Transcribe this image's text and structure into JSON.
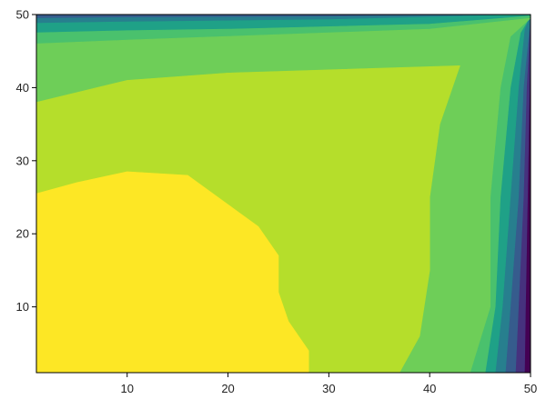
{
  "chart_data": {
    "type": "heatmap",
    "subtype": "filled-contour",
    "title": "",
    "xlabel": "",
    "ylabel": "",
    "xlim": [
      1,
      50
    ],
    "ylim": [
      1,
      50
    ],
    "x_ticks": [
      10,
      20,
      30,
      40,
      50
    ],
    "y_ticks": [
      10,
      20,
      30,
      40,
      50
    ],
    "x_tick_labels": [
      "10",
      "20",
      "30",
      "40",
      "50"
    ],
    "y_tick_labels": [
      "10",
      "20",
      "30",
      "40",
      "50"
    ],
    "grid": false,
    "colormap": "viridis",
    "level_colors": [
      "#440154",
      "#46327e",
      "#365c8d",
      "#277f8e",
      "#1fa187",
      "#4ac16d",
      "#6ece58",
      "#b5de2b",
      "#fde725"
    ],
    "x": [
      1,
      5,
      10,
      15,
      20,
      25,
      28,
      30,
      35,
      38,
      40,
      42,
      44,
      46,
      47,
      48,
      49,
      50
    ],
    "y": [
      1,
      5,
      10,
      15,
      20,
      25,
      28,
      30,
      35,
      38,
      40,
      42,
      44,
      46,
      47,
      48,
      49,
      50
    ],
    "regions": [
      {
        "name": "level-9",
        "color": "#fde725",
        "boundary": [
          [
            1,
            1
          ],
          [
            28,
            1
          ],
          [
            28,
            4
          ],
          [
            26,
            8
          ],
          [
            25,
            12
          ],
          [
            25,
            17
          ],
          [
            23,
            21
          ],
          [
            20,
            24
          ],
          [
            16,
            28
          ],
          [
            10,
            28.5
          ],
          [
            5,
            27
          ],
          [
            1,
            25.5
          ]
        ]
      },
      {
        "name": "level-8",
        "color": "#b5de2b",
        "boundary": [
          [
            1,
            1
          ],
          [
            37,
            1
          ],
          [
            39,
            6
          ],
          [
            40,
            15
          ],
          [
            40,
            25
          ],
          [
            41,
            35
          ],
          [
            43,
            43
          ],
          [
            20,
            42
          ],
          [
            10,
            41
          ],
          [
            1,
            38
          ]
        ]
      },
      {
        "name": "level-7",
        "color": "#6ece58",
        "boundary": [
          [
            1,
            1
          ],
          [
            44,
            1
          ],
          [
            46,
            10
          ],
          [
            46,
            25
          ],
          [
            47,
            40
          ],
          [
            48,
            47
          ],
          [
            50,
            49.5
          ],
          [
            40,
            48
          ],
          [
            20,
            47
          ],
          [
            10,
            46.5
          ],
          [
            1,
            46
          ]
        ]
      },
      {
        "name": "level-6",
        "color": "#4ac16d",
        "boundary": [
          [
            1,
            1
          ],
          [
            45.5,
            1
          ],
          [
            46.5,
            10
          ],
          [
            47,
            25
          ],
          [
            48,
            40
          ],
          [
            49,
            47.5
          ],
          [
            50,
            49.8
          ],
          [
            40,
            48.7
          ],
          [
            20,
            48
          ],
          [
            10,
            47.8
          ],
          [
            1,
            47.5
          ]
        ]
      },
      {
        "name": "level-5",
        "color": "#1fa187",
        "boundary": [
          [
            1,
            1
          ],
          [
            46.5,
            1
          ],
          [
            47.2,
            10
          ],
          [
            48,
            25
          ],
          [
            48.8,
            40
          ],
          [
            49.4,
            48
          ],
          [
            50,
            50
          ],
          [
            30,
            49.3
          ],
          [
            10,
            49
          ],
          [
            1,
            48.8
          ]
        ]
      },
      {
        "name": "level-4",
        "color": "#277f8e",
        "boundary": [
          [
            1,
            1
          ],
          [
            47.5,
            1
          ],
          [
            48,
            10
          ],
          [
            48.8,
            25
          ],
          [
            49.3,
            40
          ],
          [
            50,
            50
          ],
          [
            30,
            49.7
          ],
          [
            10,
            49.6
          ],
          [
            1,
            49.5
          ]
        ]
      },
      {
        "name": "level-3",
        "color": "#365c8d",
        "boundary": [
          [
            1,
            1
          ],
          [
            48.5,
            1
          ],
          [
            48.8,
            10
          ],
          [
            49.3,
            25
          ],
          [
            49.6,
            40
          ],
          [
            50,
            50
          ],
          [
            30,
            50
          ],
          [
            10,
            50
          ],
          [
            1,
            50
          ]
        ]
      },
      {
        "name": "level-2",
        "color": "#46327e",
        "boundary": [
          [
            1,
            1
          ],
          [
            49.4,
            1
          ],
          [
            49.5,
            10
          ],
          [
            49.7,
            25
          ],
          [
            49.9,
            40
          ],
          [
            50,
            50
          ],
          [
            1,
            50
          ]
        ]
      }
    ]
  }
}
